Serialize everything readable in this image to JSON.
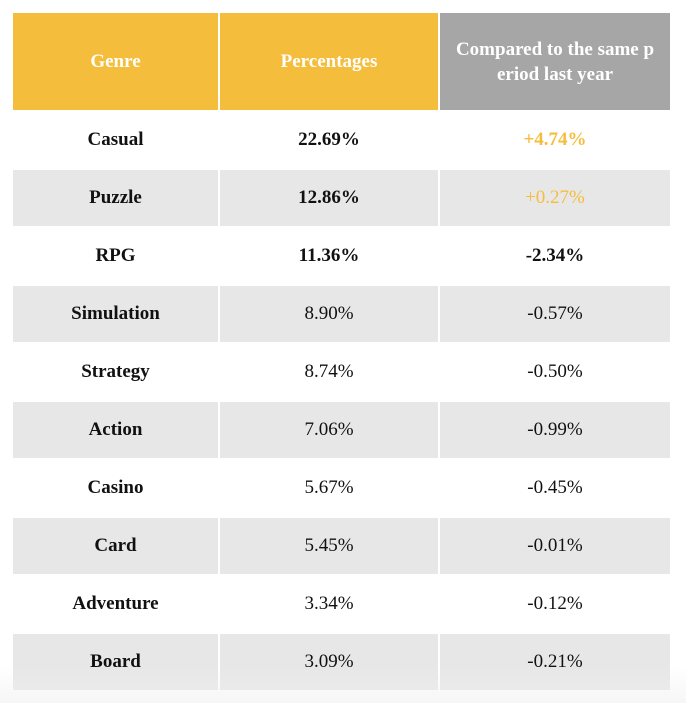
{
  "table": {
    "header": [
      "Genre",
      "Percentages",
      [
        "Compared to the same p",
        "eriod last year"
      ]
    ],
    "rows": [
      [
        "Casual",
        "22.69%",
        "+4.74%"
      ],
      [
        "Puzzle",
        "12.86%",
        "+0.27%"
      ],
      [
        "RPG",
        "11.36%",
        "-2.34%"
      ],
      [
        "Simulation",
        "8.90%",
        "-0.57%"
      ],
      [
        "Strategy",
        "8.74%",
        "-0.50%"
      ],
      [
        "Action",
        "7.06%",
        "-0.99%"
      ],
      [
        "Casino",
        "5.67%",
        "-0.45%"
      ],
      [
        "Card",
        "5.45%",
        "-0.01%"
      ],
      [
        "Adventure",
        "3.34%",
        "-0.12%"
      ],
      [
        "Board",
        "3.09%",
        "-0.21%"
      ]
    ]
  }
}
